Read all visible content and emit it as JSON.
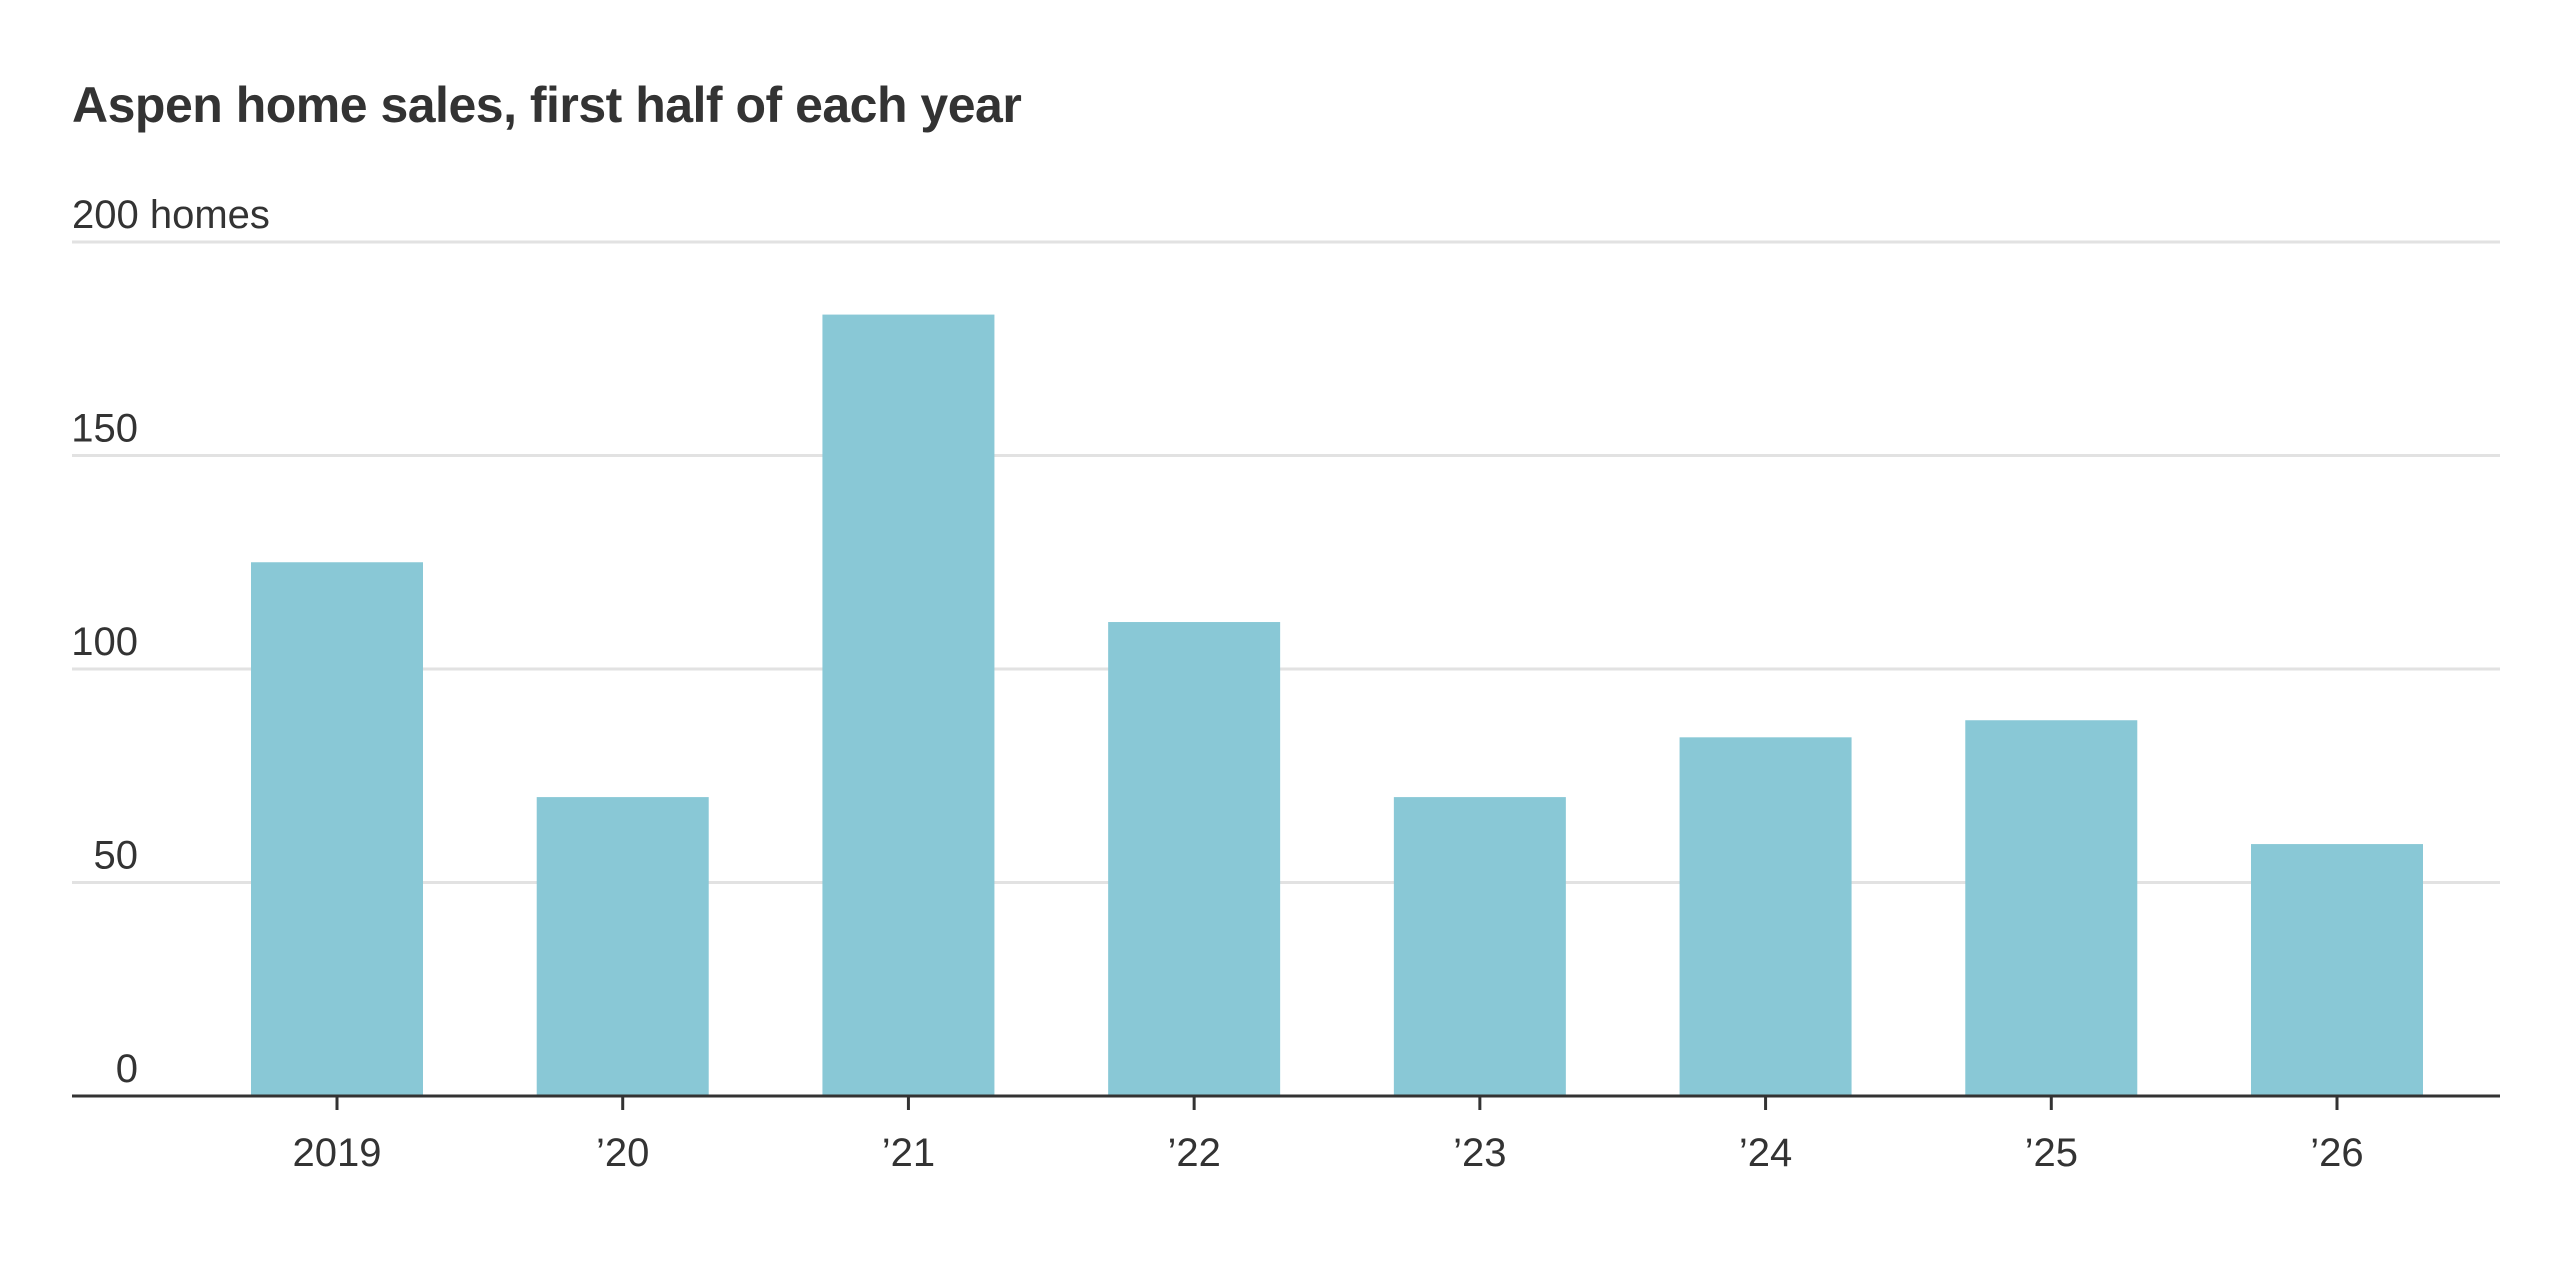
{
  "chart_data": {
    "type": "bar",
    "title": "Aspen home sales, first half of each year",
    "y_unit_label": "homes",
    "categories": [
      "2019",
      "’20",
      "’21",
      "’22",
      "’23",
      "’24",
      "’25",
      "’26"
    ],
    "values": [
      125,
      70,
      183,
      111,
      70,
      84,
      88,
      59
    ],
    "ylim": [
      0,
      200
    ],
    "yticks": [
      0,
      50,
      100,
      150,
      200
    ],
    "xlabel": "",
    "ylabel": "",
    "grid": true,
    "legend": "none",
    "colors": {
      "bar": "#89c8d6",
      "grid": "#e2e2e2",
      "axis": "#333333",
      "text": "#333333"
    }
  }
}
